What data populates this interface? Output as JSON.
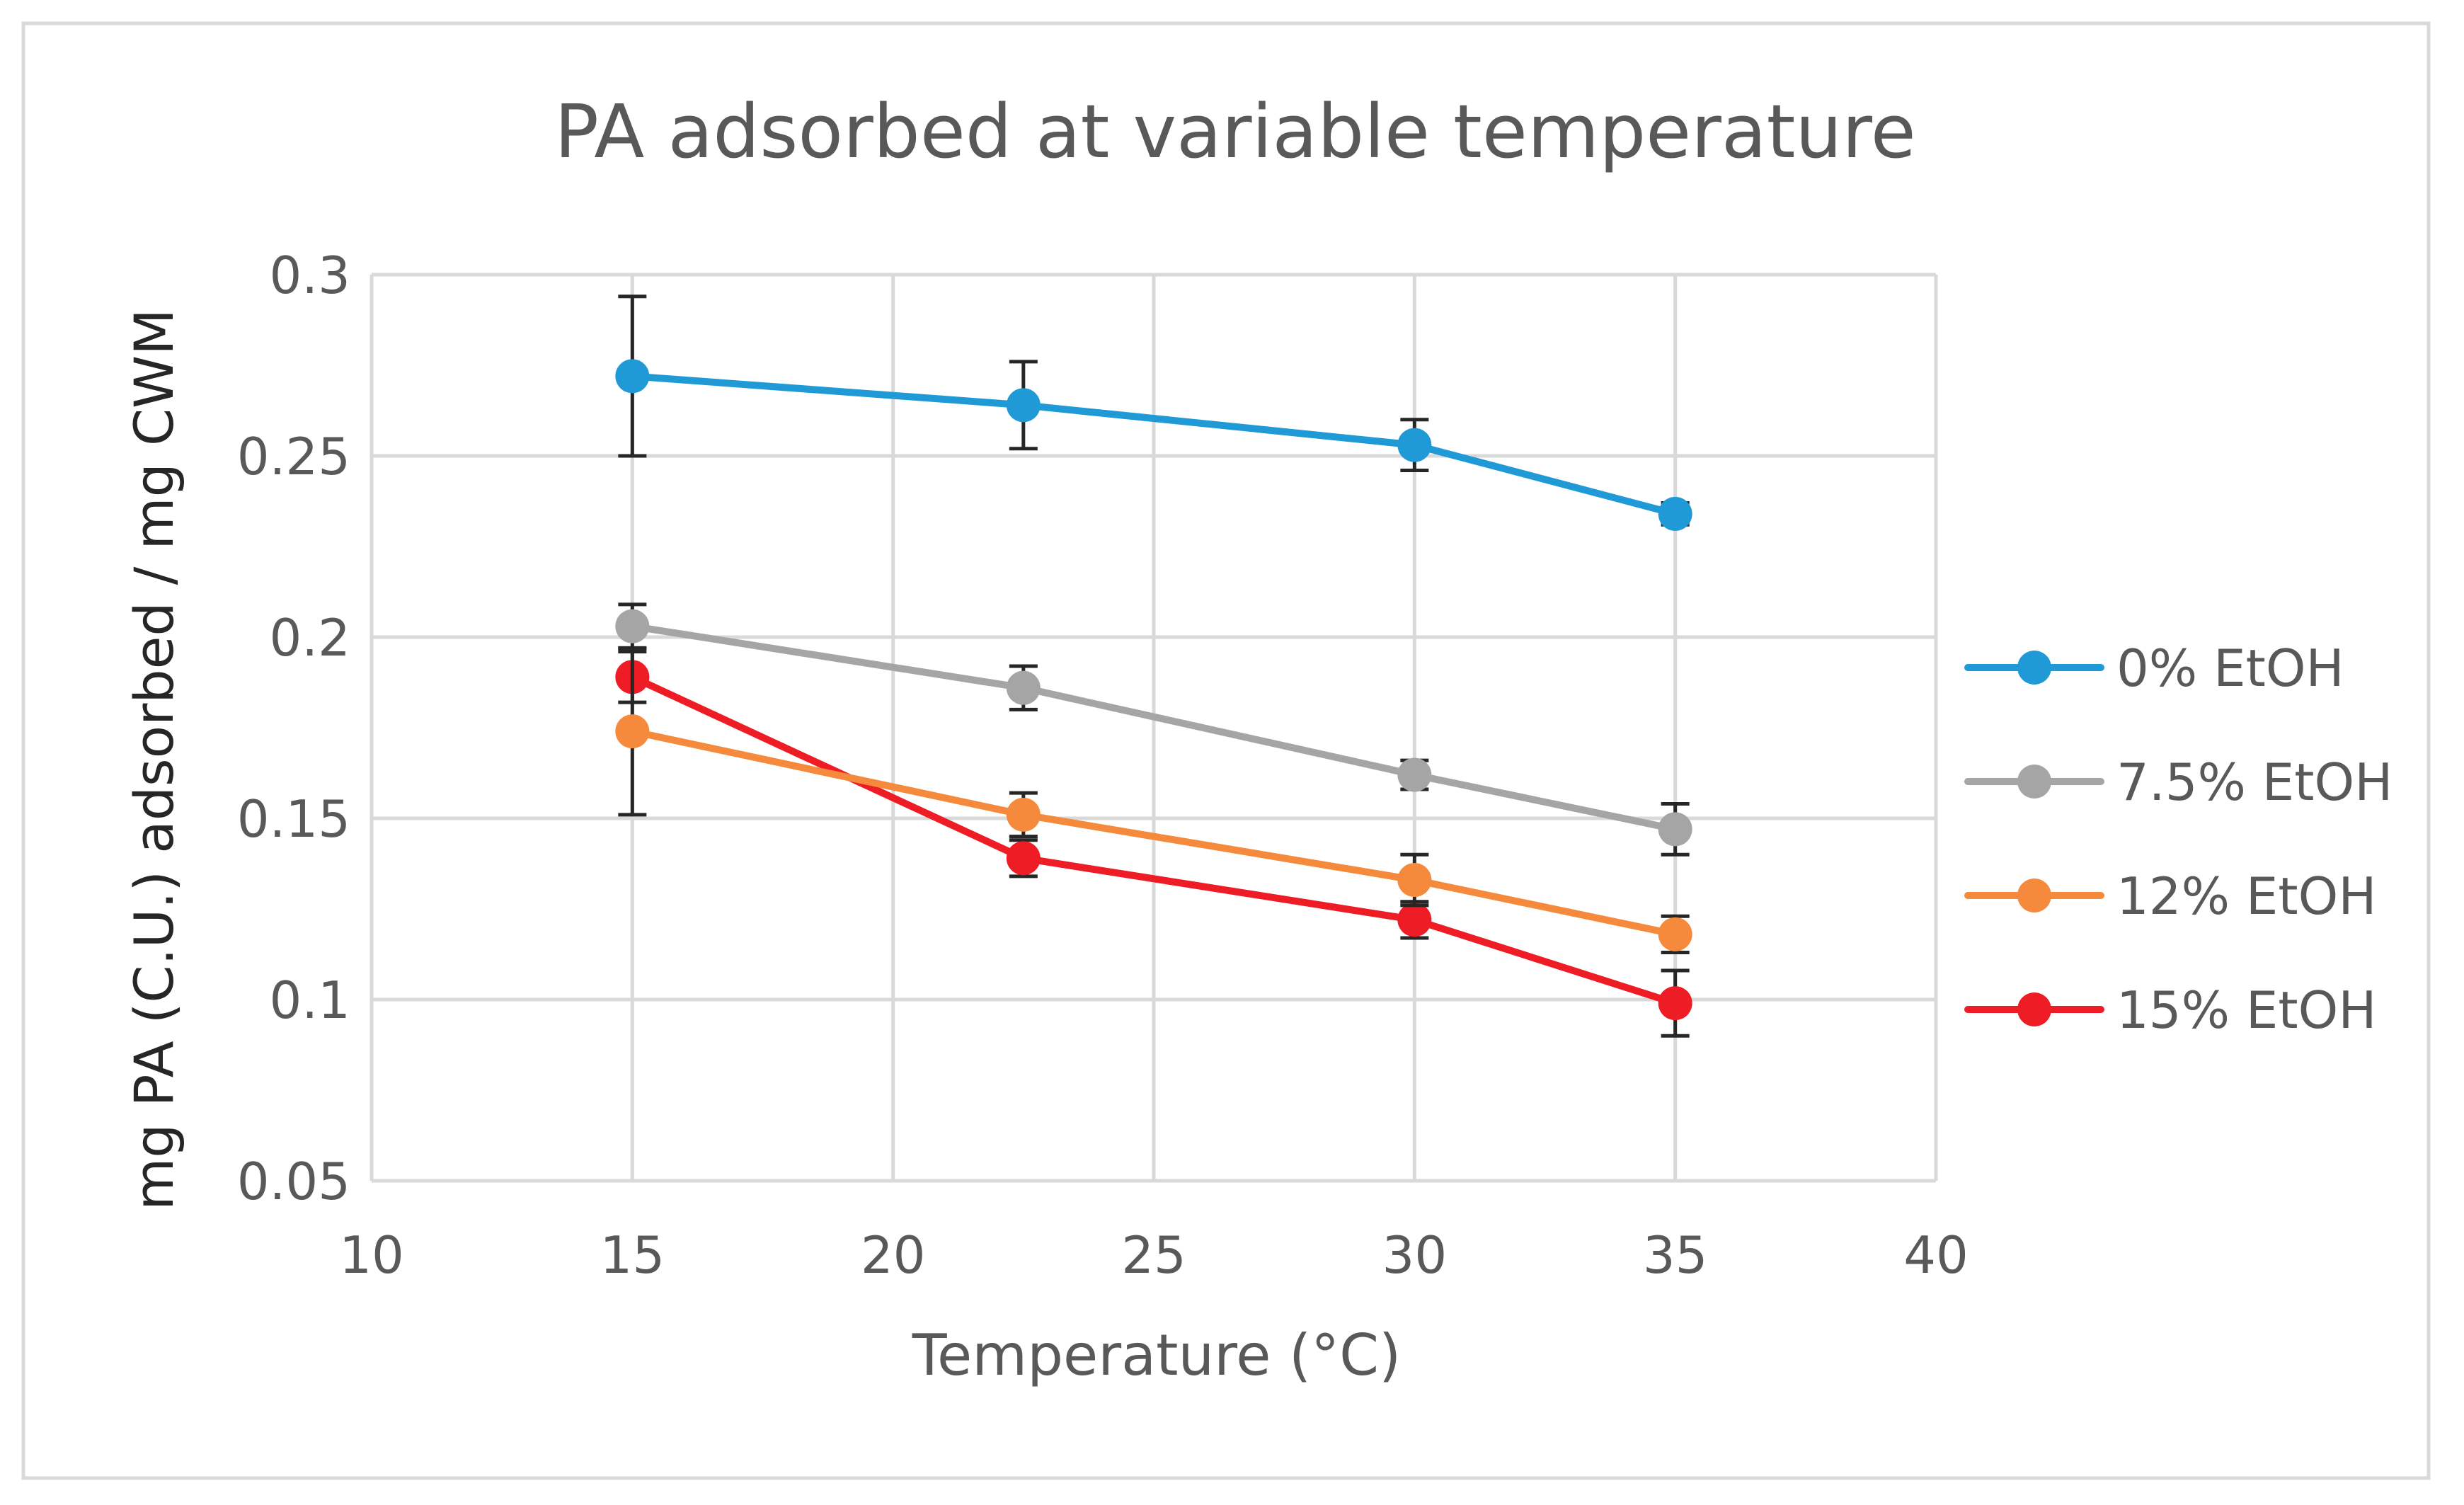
{
  "chart_data": {
    "type": "line",
    "title": "PA adsorbed at variable temperature",
    "xlabel": "Temperature (°C)",
    "ylabel": "mg PA (C.U.) adsorbed / mg CWM",
    "xlim": [
      10,
      40
    ],
    "ylim": [
      0.05,
      0.3
    ],
    "x_ticks": [
      10,
      15,
      20,
      25,
      30,
      35,
      40
    ],
    "x_tick_labels": [
      "10",
      "15",
      "20",
      "25",
      "30",
      "35",
      "40"
    ],
    "y_ticks": [
      0.05,
      0.1,
      0.15,
      0.2,
      0.25,
      0.3
    ],
    "y_tick_labels": [
      "0.05",
      "0.1",
      "0.15",
      "0.2",
      "0.25",
      "0.3"
    ],
    "grid": true,
    "legend_position": "right",
    "x": [
      15,
      22.5,
      30,
      35
    ],
    "series": [
      {
        "name": "0% EtOH",
        "color": "#1F9AD6",
        "values": [
          0.272,
          0.264,
          0.253,
          0.234
        ],
        "errors": [
          0.022,
          0.012,
          0.007,
          0.003
        ]
      },
      {
        "name": "7.5% EtOH",
        "color": "#A5A5A5",
        "values": [
          0.203,
          0.186,
          0.162,
          0.147
        ],
        "errors": [
          0.006,
          0.006,
          0.004,
          0.007
        ]
      },
      {
        "name": "12% EtOH",
        "color": "#F58A3C",
        "values": [
          0.174,
          0.151,
          0.133,
          0.118
        ],
        "errors": [
          0.023,
          0.006,
          0.007,
          0.005
        ]
      },
      {
        "name": "15% EtOH",
        "color": "#EE1C25",
        "values": [
          0.189,
          0.139,
          0.122,
          0.099
        ],
        "errors": [
          0.007,
          0.005,
          0.005,
          0.009
        ]
      }
    ]
  }
}
